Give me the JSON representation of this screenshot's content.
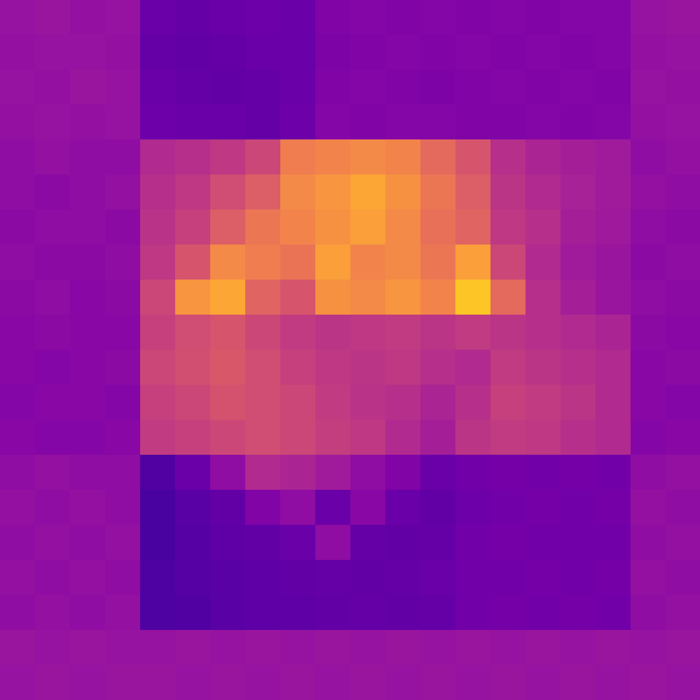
{
  "chart_data": {
    "type": "heatmap",
    "color": "plasma",
    "color_range": [
      0,
      1
    ],
    "tick_labels": false,
    "cells": [
      [
        0.32,
        0.33,
        0.31,
        0.32,
        0.2,
        0.19,
        0.2,
        0.21,
        0.2,
        0.26,
        0.27,
        0.26,
        0.27,
        0.26,
        0.27,
        0.26,
        0.27,
        0.27,
        0.32,
        0.33
      ],
      [
        0.31,
        0.32,
        0.32,
        0.31,
        0.19,
        0.18,
        0.19,
        0.2,
        0.2,
        0.25,
        0.26,
        0.27,
        0.26,
        0.27,
        0.26,
        0.27,
        0.26,
        0.27,
        0.31,
        0.32
      ],
      [
        0.32,
        0.31,
        0.33,
        0.32,
        0.2,
        0.19,
        0.18,
        0.19,
        0.2,
        0.26,
        0.27,
        0.26,
        0.25,
        0.26,
        0.27,
        0.26,
        0.27,
        0.26,
        0.32,
        0.31
      ],
      [
        0.31,
        0.32,
        0.31,
        0.32,
        0.21,
        0.2,
        0.2,
        0.19,
        0.21,
        0.27,
        0.26,
        0.27,
        0.27,
        0.26,
        0.26,
        0.27,
        0.26,
        0.27,
        0.31,
        0.32
      ],
      [
        0.3,
        0.31,
        0.3,
        0.3,
        0.4,
        0.42,
        0.45,
        0.5,
        0.68,
        0.7,
        0.72,
        0.7,
        0.62,
        0.55,
        0.42,
        0.38,
        0.36,
        0.35,
        0.3,
        0.31
      ],
      [
        0.3,
        0.29,
        0.3,
        0.31,
        0.42,
        0.45,
        0.52,
        0.58,
        0.72,
        0.75,
        0.8,
        0.74,
        0.66,
        0.58,
        0.44,
        0.4,
        0.37,
        0.35,
        0.31,
        0.3
      ],
      [
        0.29,
        0.3,
        0.3,
        0.29,
        0.43,
        0.48,
        0.58,
        0.66,
        0.7,
        0.74,
        0.78,
        0.72,
        0.64,
        0.6,
        0.45,
        0.42,
        0.36,
        0.34,
        0.3,
        0.29
      ],
      [
        0.3,
        0.29,
        0.29,
        0.3,
        0.45,
        0.55,
        0.72,
        0.68,
        0.65,
        0.78,
        0.7,
        0.72,
        0.66,
        0.78,
        0.5,
        0.4,
        0.35,
        0.33,
        0.29,
        0.3
      ],
      [
        0.29,
        0.3,
        0.28,
        0.29,
        0.5,
        0.75,
        0.8,
        0.6,
        0.55,
        0.74,
        0.72,
        0.75,
        0.7,
        0.88,
        0.62,
        0.42,
        0.36,
        0.33,
        0.3,
        0.29
      ],
      [
        0.28,
        0.29,
        0.28,
        0.28,
        0.48,
        0.52,
        0.55,
        0.5,
        0.46,
        0.44,
        0.45,
        0.46,
        0.44,
        0.46,
        0.44,
        0.42,
        0.4,
        0.38,
        0.29,
        0.28
      ],
      [
        0.28,
        0.27,
        0.28,
        0.29,
        0.5,
        0.53,
        0.56,
        0.52,
        0.48,
        0.45,
        0.44,
        0.45,
        0.42,
        0.4,
        0.46,
        0.44,
        0.42,
        0.4,
        0.28,
        0.29
      ],
      [
        0.27,
        0.28,
        0.28,
        0.27,
        0.48,
        0.5,
        0.54,
        0.52,
        0.5,
        0.46,
        0.43,
        0.42,
        0.38,
        0.42,
        0.48,
        0.46,
        0.44,
        0.4,
        0.28,
        0.27
      ],
      [
        0.28,
        0.27,
        0.27,
        0.28,
        0.46,
        0.48,
        0.5,
        0.52,
        0.5,
        0.47,
        0.45,
        0.4,
        0.36,
        0.44,
        0.46,
        0.45,
        0.42,
        0.4,
        0.27,
        0.28
      ],
      [
        0.3,
        0.31,
        0.3,
        0.3,
        0.14,
        0.2,
        0.3,
        0.4,
        0.38,
        0.35,
        0.3,
        0.26,
        0.2,
        0.22,
        0.23,
        0.22,
        0.23,
        0.22,
        0.3,
        0.31
      ],
      [
        0.31,
        0.3,
        0.31,
        0.3,
        0.12,
        0.16,
        0.18,
        0.26,
        0.3,
        0.2,
        0.28,
        0.2,
        0.18,
        0.21,
        0.22,
        0.23,
        0.22,
        0.23,
        0.31,
        0.3
      ],
      [
        0.3,
        0.31,
        0.3,
        0.31,
        0.12,
        0.15,
        0.17,
        0.18,
        0.2,
        0.3,
        0.19,
        0.18,
        0.19,
        0.22,
        0.23,
        0.22,
        0.22,
        0.22,
        0.3,
        0.31
      ],
      [
        0.31,
        0.3,
        0.31,
        0.3,
        0.13,
        0.15,
        0.16,
        0.17,
        0.18,
        0.19,
        0.18,
        0.19,
        0.2,
        0.22,
        0.22,
        0.23,
        0.22,
        0.23,
        0.31,
        0.3
      ],
      [
        0.3,
        0.31,
        0.3,
        0.31,
        0.13,
        0.14,
        0.16,
        0.17,
        0.17,
        0.18,
        0.19,
        0.18,
        0.19,
        0.22,
        0.23,
        0.22,
        0.23,
        0.22,
        0.3,
        0.31
      ],
      [
        0.33,
        0.32,
        0.33,
        0.32,
        0.32,
        0.33,
        0.32,
        0.33,
        0.32,
        0.33,
        0.32,
        0.33,
        0.32,
        0.33,
        0.32,
        0.33,
        0.32,
        0.33,
        0.32,
        0.33
      ],
      [
        0.32,
        0.33,
        0.32,
        0.33,
        0.33,
        0.32,
        0.33,
        0.32,
        0.33,
        0.32,
        0.33,
        0.32,
        0.33,
        0.32,
        0.33,
        0.32,
        0.33,
        0.32,
        0.33,
        0.32
      ]
    ]
  }
}
